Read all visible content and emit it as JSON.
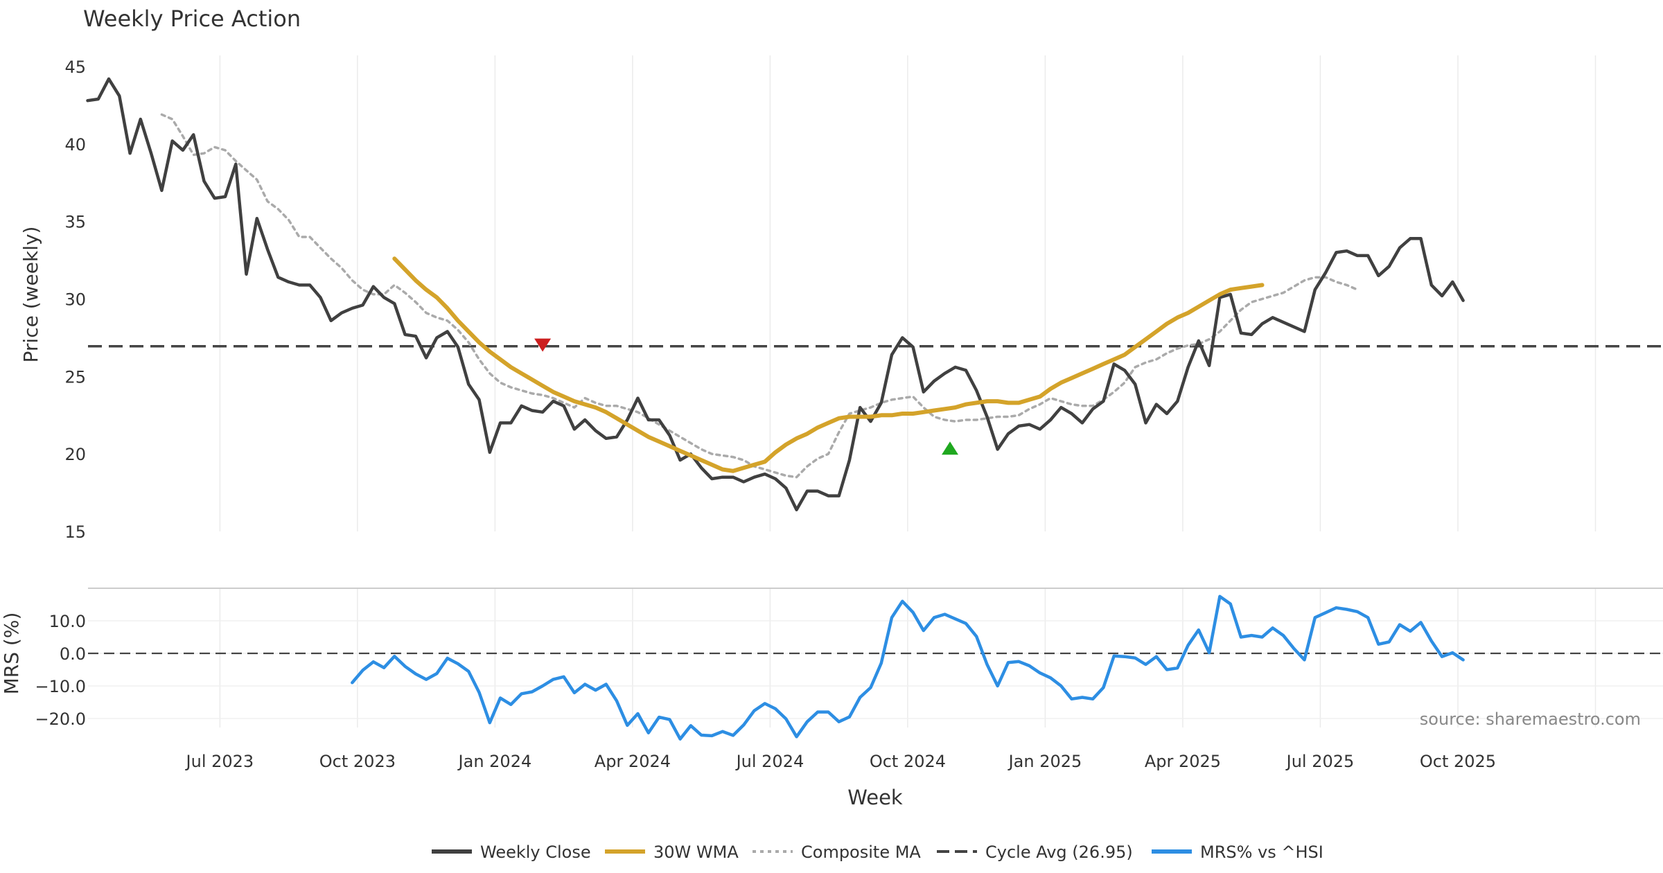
{
  "chart_data": [
    {
      "type": "line",
      "title": "Weekly Price Action",
      "ylabel": "Price (weekly)",
      "xlabel": "",
      "ylim": [
        15,
        45
      ],
      "yticks": [
        15,
        20,
        25,
        30,
        35,
        40,
        45
      ],
      "x_range_weeks": [
        -7,
        144
      ],
      "x_tick_weeks": [
        5.5,
        18.5,
        31.5,
        44.5,
        57.5,
        70.5,
        83.5,
        96.5,
        109.5,
        122.5,
        135.5
      ],
      "grid": "vertical",
      "series": [
        {
          "name": "Weekly Close",
          "color": "#404040",
          "start_week": -7,
          "values": [
            42.8,
            42.9,
            44.2,
            43.1,
            39.4,
            41.6,
            39.4,
            37.0,
            40.2,
            39.6,
            40.6,
            37.6,
            36.5,
            36.6,
            38.7,
            31.6,
            35.2,
            33.2,
            31.4,
            31.1,
            30.9,
            30.9,
            30.1,
            28.6,
            29.1,
            29.4,
            29.6,
            30.8,
            30.1,
            29.7,
            27.7,
            27.6,
            26.2,
            27.5,
            27.9,
            26.9,
            24.5,
            23.5,
            20.1,
            22.0,
            22.0,
            23.1,
            22.8,
            22.7,
            23.4,
            23.1,
            21.6,
            22.2,
            21.5,
            21.0,
            21.1,
            22.2,
            23.6,
            22.2,
            22.2,
            21.2,
            19.6,
            20.0,
            19.1,
            18.4,
            18.5,
            18.5,
            18.2,
            18.5,
            18.7,
            18.4,
            17.8,
            16.4,
            17.6,
            17.6,
            17.3,
            17.3,
            19.6,
            23.0,
            22.1,
            23.3,
            26.4,
            27.5,
            26.9,
            24.0,
            24.7,
            25.2,
            25.6,
            25.4,
            24.1,
            22.4,
            20.3,
            21.3,
            21.8,
            21.9,
            21.6,
            22.2,
            23.0,
            22.6,
            22.0,
            22.9,
            23.4,
            25.8,
            25.4,
            24.5,
            22.0,
            23.2,
            22.6,
            23.4,
            25.6,
            27.3,
            25.7,
            30.1,
            30.3,
            27.8,
            27.7,
            28.4,
            28.8,
            28.5,
            28.2,
            27.9,
            30.6,
            31.7,
            33.0,
            33.1,
            32.8,
            32.8,
            31.5,
            32.1,
            33.3,
            33.9,
            33.9,
            30.9,
            30.2,
            31.1,
            29.9
          ]
        },
        {
          "name": "30W WMA",
          "color": "#d4a32a",
          "start_week": 22,
          "values": [
            32.6,
            31.9,
            31.2,
            30.6,
            30.1,
            29.4,
            28.6,
            27.9,
            27.2,
            26.6,
            26.1,
            25.6,
            25.2,
            24.8,
            24.4,
            24.0,
            23.7,
            23.4,
            23.2,
            23.0,
            22.7,
            22.3,
            21.9,
            21.5,
            21.1,
            20.8,
            20.5,
            20.2,
            19.9,
            19.6,
            19.3,
            19.0,
            18.9,
            19.1,
            19.3,
            19.5,
            20.1,
            20.6,
            21.0,
            21.3,
            21.7,
            22.0,
            22.3,
            22.4,
            22.4,
            22.4,
            22.5,
            22.5,
            22.6,
            22.6,
            22.7,
            22.8,
            22.9,
            23.0,
            23.2,
            23.3,
            23.4,
            23.4,
            23.3,
            23.3,
            23.5,
            23.7,
            24.2,
            24.6,
            24.9,
            25.2,
            25.5,
            25.8,
            26.1,
            26.4,
            26.9,
            27.4,
            27.9,
            28.4,
            28.8,
            29.1,
            29.5,
            29.9,
            30.3,
            30.6,
            30.7,
            30.8,
            30.9
          ]
        },
        {
          "name": "Composite MA",
          "color": "#aaaaaa",
          "dash": "dotted",
          "start_week": 0,
          "values": [
            41.9,
            41.6,
            40.5,
            39.3,
            39.4,
            39.8,
            39.6,
            38.9,
            38.3,
            37.7,
            36.3,
            35.8,
            35.1,
            34.0,
            34.0,
            33.3,
            32.6,
            32.0,
            31.2,
            30.6,
            30.3,
            30.3,
            30.9,
            30.4,
            29.8,
            29.1,
            28.8,
            28.6,
            28.0,
            27.2,
            26.1,
            25.2,
            24.6,
            24.3,
            24.1,
            23.9,
            23.8,
            23.6,
            23.3,
            23.0,
            23.6,
            23.3,
            23.1,
            23.1,
            22.9,
            22.7,
            22.3,
            21.9,
            21.5,
            21.1,
            20.7,
            20.3,
            20.0,
            19.9,
            19.8,
            19.6,
            19.2,
            19.0,
            18.8,
            18.6,
            18.5,
            19.2,
            19.7,
            20.0,
            21.4,
            22.6,
            22.8,
            23.0,
            23.3,
            23.5,
            23.6,
            23.7,
            23.0,
            22.4,
            22.2,
            22.1,
            22.2,
            22.2,
            22.3,
            22.4,
            22.4,
            22.5,
            22.9,
            23.2,
            23.6,
            23.4,
            23.2,
            23.1,
            23.1,
            23.5,
            24.0,
            24.6,
            25.6,
            25.9,
            26.1,
            26.5,
            26.8,
            27.0,
            27.1,
            27.4,
            27.9,
            28.6,
            29.3,
            29.8,
            30.0,
            30.2,
            30.4,
            30.8,
            31.2,
            31.4,
            31.4,
            31.1,
            30.9,
            30.6
          ]
        }
      ],
      "reference_lines": [
        {
          "name": "Cycle Avg (26.95)",
          "value": 26.95,
          "color": "#444444",
          "dash": "dashed"
        }
      ],
      "markers": [
        {
          "type": "sell",
          "shape": "down-triangle",
          "week": 36,
          "value": 27.0,
          "color": "#cc1f1f"
        },
        {
          "type": "buy",
          "shape": "up-triangle",
          "week": 74.5,
          "value": 20.4,
          "color": "#1fa81f"
        }
      ]
    },
    {
      "type": "line",
      "ylabel": "MRS (%)",
      "xlabel": "Week",
      "ylim": [
        -27,
        19
      ],
      "yticks": [
        10.0,
        0.0,
        -10.0,
        -20.0
      ],
      "ytick_labels": [
        "10.0",
        "0.0",
        "−10.0",
        "−20.0"
      ],
      "x_tick_labels": [
        "Jul 2023",
        "Oct 2023",
        "Jan 2024",
        "Apr 2024",
        "Jul 2024",
        "Oct 2024",
        "Jan 2025",
        "Apr 2025",
        "Jul 2025",
        "Oct 2025"
      ],
      "series": [
        {
          "name": "MRS% vs ^HSI",
          "color": "#2d8ee3",
          "start_week": 18,
          "values": [
            -9.0,
            -5.2,
            -2.6,
            -4.4,
            -0.9,
            -4.0,
            -6.3,
            -8.0,
            -6.2,
            -1.5,
            -3.2,
            -5.5,
            -12.0,
            -21.3,
            -13.7,
            -15.7,
            -12.4,
            -11.8,
            -10.0,
            -8.0,
            -7.2,
            -12.1,
            -9.5,
            -11.3,
            -9.5,
            -14.6,
            -22.1,
            -18.5,
            -24.4,
            -19.6,
            -20.3,
            -26.3,
            -22.2,
            -25.1,
            -25.3,
            -24.0,
            -25.2,
            -22.0,
            -17.6,
            -15.4,
            -17.0,
            -20.1,
            -25.6,
            -21.0,
            -18.0,
            -18.0,
            -21.0,
            -19.5,
            -13.5,
            -10.5,
            -3.0,
            11.0,
            16.0,
            12.6,
            7.0,
            11.0,
            12.0,
            10.6,
            9.2,
            5.2,
            -3.4,
            -10.0,
            -2.8,
            -2.5,
            -3.8,
            -6.0,
            -7.5,
            -10.0,
            -14.0,
            -13.5,
            -14.0,
            -10.5,
            -0.8,
            -1.0,
            -1.4,
            -3.4,
            -1.0,
            -5.0,
            -4.5,
            2.5,
            7.2,
            0.2,
            17.5,
            15.2,
            5.0,
            5.5,
            5.0,
            7.8,
            5.5,
            1.5,
            -2.0,
            11.0,
            12.5,
            14.0,
            13.5,
            12.8,
            11.0,
            2.8,
            3.5,
            8.8,
            6.8,
            9.5,
            3.8,
            -1.0,
            0.2,
            -2.0
          ]
        }
      ],
      "reference_lines": [
        {
          "value": 0,
          "color": "#444444",
          "dash": "dashed"
        }
      ],
      "annotations": [
        "source: sharemaestro.com"
      ]
    }
  ],
  "legend": {
    "placement": "bottom-center",
    "items": [
      {
        "label": "Weekly Close",
        "color": "#404040",
        "style": "solid"
      },
      {
        "label": "30W WMA",
        "color": "#d4a32a",
        "style": "solid"
      },
      {
        "label": "Composite MA",
        "color": "#aaaaaa",
        "style": "dotted"
      },
      {
        "label": "Cycle Avg (26.95)",
        "color": "#444444",
        "style": "dashed"
      },
      {
        "label": "MRS% vs ^HSI",
        "color": "#2d8ee3",
        "style": "solid"
      }
    ]
  }
}
